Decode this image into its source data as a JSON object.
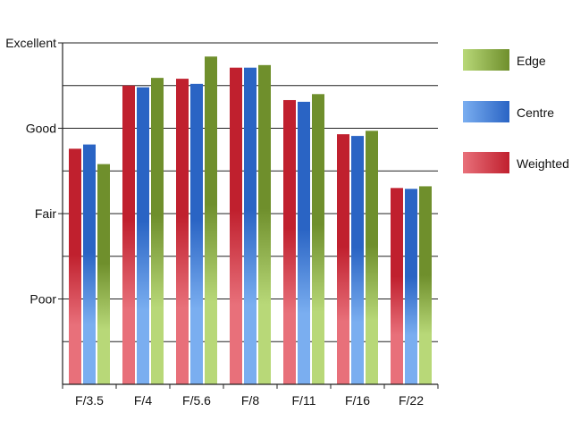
{
  "chart_data": {
    "type": "bar",
    "title": "",
    "xlabel": "",
    "ylabel": "",
    "categories": [
      "F/3.5",
      "F/4",
      "F/5.6",
      "F/8",
      "F/11",
      "F/16",
      "F/22"
    ],
    "y_ticks": [
      {
        "value": 1,
        "label": "Poor"
      },
      {
        "value": 2,
        "label": "Fair"
      },
      {
        "value": 3,
        "label": "Good"
      },
      {
        "value": 4,
        "label": "Excellent"
      }
    ],
    "ylim": [
      0,
      4
    ],
    "minor_gridlines": [
      0.5,
      1,
      1.5,
      2,
      2.5,
      3,
      3.5,
      4
    ],
    "grid": true,
    "legend_position": "right",
    "series": [
      {
        "name": "Weighted",
        "color": "#c0202e",
        "color_light": "#e8707a",
        "values": [
          2.76,
          3.5,
          3.58,
          3.71,
          3.33,
          2.93,
          2.3
        ]
      },
      {
        "name": "Centre",
        "color": "#2a64c4",
        "color_light": "#7aaef0",
        "values": [
          2.81,
          3.48,
          3.52,
          3.71,
          3.31,
          2.91,
          2.29
        ]
      },
      {
        "name": "Edge",
        "color": "#6f8f2c",
        "color_light": "#b8d878",
        "values": [
          2.58,
          3.59,
          3.84,
          3.74,
          3.4,
          2.97,
          2.32
        ]
      }
    ],
    "legend_order": [
      "Edge",
      "Centre",
      "Weighted"
    ]
  }
}
